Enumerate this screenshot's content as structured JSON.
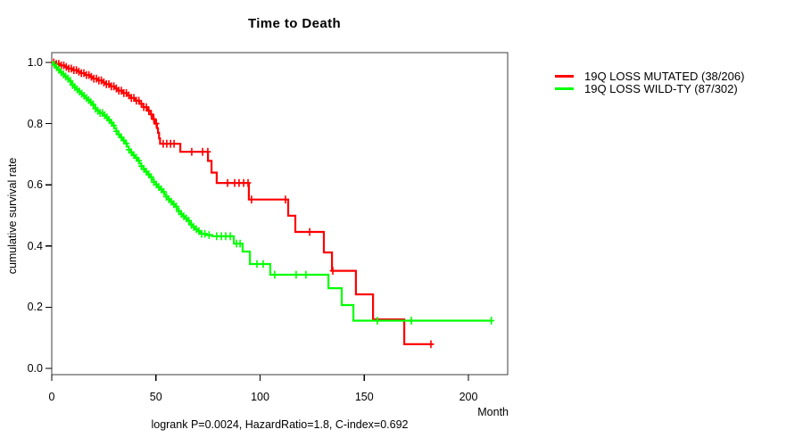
{
  "chart_data": {
    "type": "line",
    "subtype": "kaplan-meier-step",
    "title": "Time to Death",
    "xlabel": "Month",
    "ylabel": "cumulative survival rate",
    "annotation": "logrank P=0.0024, HazardRatio=1.8, C-index=0.692",
    "x_tick_values": [
      0,
      50,
      100,
      150,
      200
    ],
    "x_ticks": [
      "0",
      "50",
      "100",
      "150",
      "200"
    ],
    "y_tick_values": [
      1.0,
      0.8,
      0.6,
      0.4,
      0.2,
      0.0
    ],
    "y_ticks": [
      "1.0",
      "0.8",
      "0.6",
      "0.4",
      "0.2",
      "0.0"
    ],
    "xlim": [
      0,
      225
    ],
    "ylim": [
      0.0,
      1.0
    ],
    "grid": false,
    "legend_position": "outside-right",
    "series": [
      {
        "name": "19Q LOSS MUTATED (38/206)",
        "color": "#FF0000",
        "events": 38,
        "n": 206,
        "end_month": 183,
        "steps": [
          [
            0,
            1.0
          ],
          [
            2,
            0.995
          ],
          [
            4,
            0.99
          ],
          [
            6,
            0.985
          ],
          [
            8,
            0.98
          ],
          [
            10,
            0.975
          ],
          [
            12,
            0.97
          ],
          [
            14,
            0.965
          ],
          [
            16,
            0.959
          ],
          [
            18,
            0.953
          ],
          [
            20,
            0.947
          ],
          [
            22,
            0.941
          ],
          [
            24,
            0.935
          ],
          [
            26,
            0.929
          ],
          [
            28,
            0.922
          ],
          [
            30,
            0.915
          ],
          [
            32,
            0.908
          ],
          [
            34,
            0.9
          ],
          [
            36,
            0.892
          ],
          [
            38,
            0.884
          ],
          [
            40,
            0.875
          ],
          [
            42,
            0.865
          ],
          [
            44,
            0.854
          ],
          [
            46,
            0.842
          ],
          [
            47.5,
            0.83
          ],
          [
            48.5,
            0.815
          ],
          [
            49.5,
            0.8
          ],
          [
            50.5,
            0.785
          ],
          [
            51,
            0.77
          ],
          [
            51.5,
            0.752
          ],
          [
            52,
            0.734
          ],
          [
            61.7,
            0.708
          ],
          [
            75,
            0.678
          ],
          [
            76.7,
            0.64
          ],
          [
            79.2,
            0.606
          ],
          [
            94.6,
            0.552
          ],
          [
            113.5,
            0.499
          ],
          [
            116.9,
            0.446
          ],
          [
            130.6,
            0.379
          ],
          [
            134.5,
            0.319
          ],
          [
            146,
            0.242
          ],
          [
            154.2,
            0.16
          ],
          [
            169.2,
            0.079
          ]
        ],
        "censor_months": [
          1,
          2.2,
          3.4,
          4.6,
          5.8,
          7,
          8.2,
          9.4,
          10.6,
          11.8,
          13,
          14.2,
          15.4,
          16.6,
          17.8,
          19,
          20.2,
          21.4,
          22.6,
          23.8,
          25,
          26.2,
          27.4,
          28.6,
          29.8,
          31,
          32.2,
          33.4,
          34.6,
          35.8,
          37,
          38.2,
          39.4,
          40.6,
          41.8,
          43,
          44.2,
          45.4,
          46.6,
          47.8,
          49,
          50.2,
          53.5,
          55.2,
          57,
          58.7,
          67.2,
          72.4,
          74.9,
          84.4,
          87.8,
          89.9,
          92.1,
          94.2,
          95.9,
          112.2,
          123.8,
          134.9,
          182
        ]
      },
      {
        "name": "19Q LOSS WILD-TY (87/302)",
        "color": "#00FF00",
        "events": 87,
        "n": 302,
        "end_month": 211,
        "steps": [
          [
            0,
            1.0
          ],
          [
            1,
            0.992
          ],
          [
            2,
            0.984
          ],
          [
            3,
            0.976
          ],
          [
            4,
            0.968
          ],
          [
            5,
            0.961
          ],
          [
            6,
            0.954
          ],
          [
            7,
            0.947
          ],
          [
            8,
            0.94
          ],
          [
            9,
            0.933
          ],
          [
            10,
            0.926
          ],
          [
            11,
            0.919
          ],
          [
            12,
            0.912
          ],
          [
            13,
            0.905
          ],
          [
            14,
            0.898
          ],
          [
            15,
            0.891
          ],
          [
            16,
            0.884
          ],
          [
            17,
            0.877
          ],
          [
            18,
            0.87
          ],
          [
            19,
            0.863
          ],
          [
            20,
            0.856
          ],
          [
            21,
            0.849
          ],
          [
            22,
            0.842
          ],
          [
            23,
            0.835
          ],
          [
            25,
            0.827
          ],
          [
            26,
            0.82
          ],
          [
            27,
            0.812
          ],
          [
            28,
            0.803
          ],
          [
            29,
            0.794
          ],
          [
            30,
            0.785
          ],
          [
            31,
            0.775
          ],
          [
            32,
            0.765
          ],
          [
            33,
            0.755
          ],
          [
            34,
            0.745
          ],
          [
            35,
            0.735
          ],
          [
            36,
            0.725
          ],
          [
            37,
            0.715
          ],
          [
            38,
            0.706
          ],
          [
            39,
            0.697
          ],
          [
            40,
            0.688
          ],
          [
            41,
            0.679
          ],
          [
            42,
            0.67
          ],
          [
            43,
            0.661
          ],
          [
            44,
            0.652
          ],
          [
            45,
            0.643
          ],
          [
            46,
            0.634
          ],
          [
            47,
            0.625
          ],
          [
            48,
            0.617
          ],
          [
            49,
            0.609
          ],
          [
            50,
            0.601
          ],
          [
            51,
            0.593
          ],
          [
            52,
            0.585
          ],
          [
            53,
            0.577
          ],
          [
            54,
            0.569
          ],
          [
            55,
            0.561
          ],
          [
            56,
            0.553
          ],
          [
            57,
            0.545
          ],
          [
            58,
            0.537
          ],
          [
            59,
            0.529
          ],
          [
            60,
            0.521
          ],
          [
            61,
            0.513
          ],
          [
            62,
            0.505
          ],
          [
            63,
            0.497
          ],
          [
            64,
            0.49
          ],
          [
            65,
            0.483
          ],
          [
            66,
            0.476
          ],
          [
            67,
            0.469
          ],
          [
            68,
            0.462
          ],
          [
            69,
            0.455
          ],
          [
            70,
            0.449
          ],
          [
            71,
            0.444
          ],
          [
            72,
            0.44
          ],
          [
            74,
            0.436
          ],
          [
            77,
            0.432
          ],
          [
            87.4,
            0.408
          ],
          [
            91.6,
            0.382
          ],
          [
            95.1,
            0.341
          ],
          [
            104.9,
            0.306
          ],
          [
            132.8,
            0.262
          ],
          [
            139.2,
            0.207
          ],
          [
            144.8,
            0.156
          ]
        ],
        "censor_months": [
          1.2,
          2.3,
          3.4,
          4.5,
          5.6,
          6.7,
          7.8,
          8.9,
          10,
          11.1,
          12.2,
          13.3,
          14.4,
          15.5,
          16.6,
          17.7,
          18.8,
          19.9,
          21,
          22.1,
          23.2,
          24.3,
          25.4,
          26.5,
          27.6,
          28.7,
          29.8,
          31,
          32.2,
          33.4,
          34.6,
          35.8,
          37,
          38.2,
          39.4,
          40.6,
          41.8,
          43,
          44.2,
          45.4,
          46.6,
          47.8,
          49,
          50.2,
          51.4,
          52.6,
          53.8,
          55,
          56.2,
          57.4,
          58.6,
          59.8,
          61,
          62.2,
          63.4,
          64.6,
          65.8,
          67,
          68.2,
          69.4,
          70.6,
          72,
          73.5,
          75.5,
          79.2,
          81.4,
          83.5,
          85.7,
          88.7,
          90.4,
          98.5,
          101.5,
          107,
          117.3,
          122,
          156.3,
          172.6,
          211
        ]
      }
    ]
  }
}
